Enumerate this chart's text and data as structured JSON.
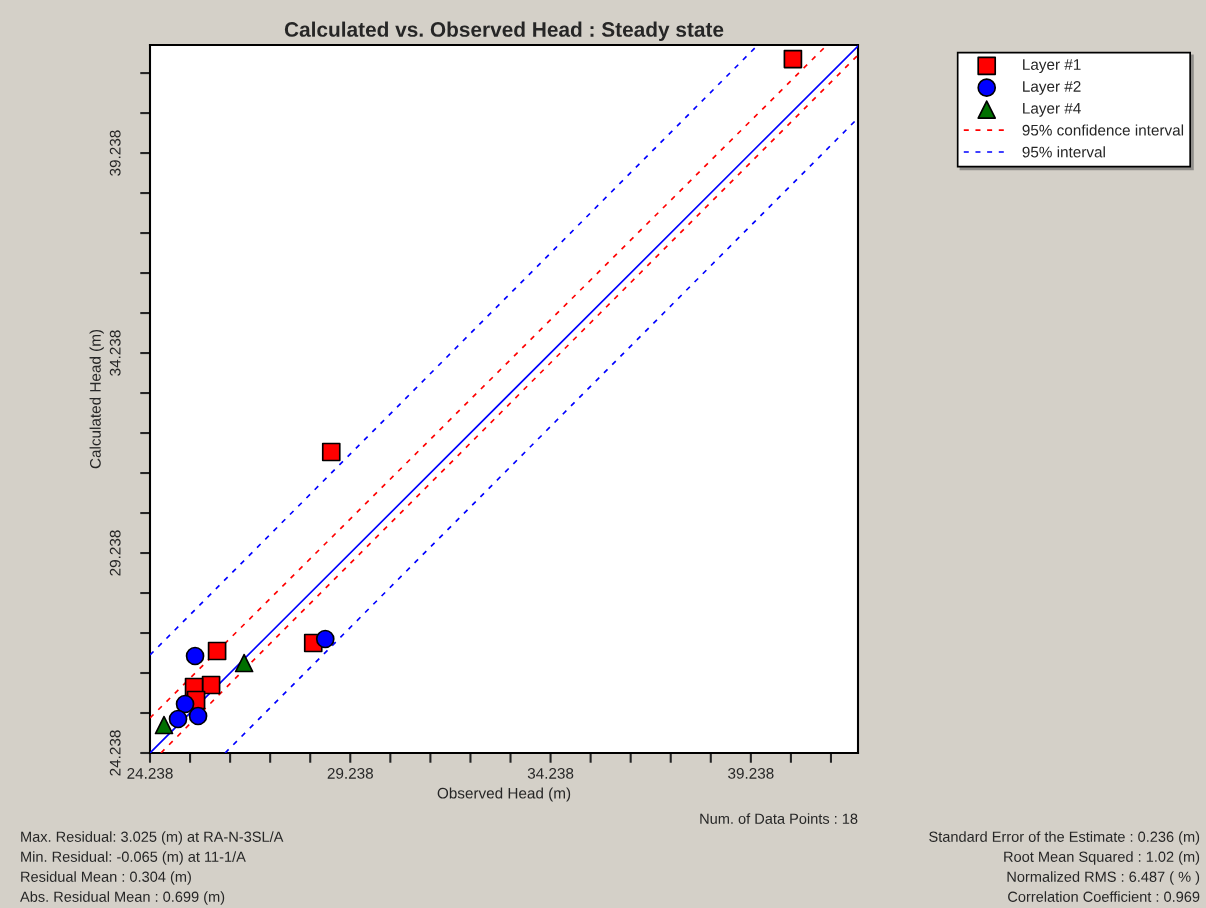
{
  "chart_data": {
    "type": "scatter",
    "title": "Calculated vs. Observed Head : Steady state",
    "xlabel": "Observed Head (m)",
    "ylabel": "Calculated Head (m)",
    "series": [
      {
        "name": "Layer #1",
        "color": "#ff0000",
        "marker": "square",
        "x": [
          40.288,
          28.763,
          25.913,
          28.313,
          25.763,
          25.338,
          25.388,
          null,
          null
        ],
        "values": [
          41.588,
          31.763,
          26.788,
          26.988,
          25.938,
          25.888,
          25.563,
          null,
          null
        ]
      },
      {
        "name": "Layer #2",
        "color": "#0000ff",
        "marker": "circle",
        "x": [
          25.363,
          28.613,
          25.113,
          24.938,
          25.438
        ],
        "values": [
          26.663,
          27.088,
          25.463,
          25.088,
          25.163
        ]
      },
      {
        "name": "Layer #4",
        "color": "#007000",
        "marker": "triangle",
        "x": [
          24.588,
          26.588
        ],
        "values": [
          24.938,
          26.488
        ]
      },
      {
        "name": "95% confidence interval",
        "type": "line",
        "line_style": "dashed",
        "color": "#ff0000",
        "x": [
          24.238,
          41.138,
          null,
          24.51,
          41.913
        ],
        "values": [
          25.113,
          41.94,
          null,
          24.238,
          41.69
        ]
      },
      {
        "name": "95% interval",
        "type": "line",
        "line_style": "dashed",
        "color": "#0000ff",
        "x": [
          24.238,
          39.413,
          null,
          26.113,
          41.913
        ],
        "values": [
          26.688,
          41.94,
          null,
          24.238,
          40.113
        ]
      },
      {
        "type": "line",
        "line_style": "solid",
        "color": "#0000ff",
        "x": [
          24.238,
          41.913
        ],
        "values": [
          24.238,
          41.913
        ]
      }
    ],
    "xlim": [
      24.238,
      41.913
    ],
    "ylim": [
      24.238,
      41.94
    ],
    "xticks": [
      24.238,
      {
        "value": 25.238,
        "label": null
      },
      {
        "value": 26.238,
        "label": null
      },
      {
        "value": 27.238,
        "label": null
      },
      {
        "value": 28.238,
        "label": null
      },
      29.238,
      {
        "value": 30.238,
        "label": null
      },
      {
        "value": 31.238,
        "label": null
      },
      {
        "value": 32.238,
        "label": null
      },
      {
        "value": 33.238,
        "label": null
      },
      34.238,
      {
        "value": 35.238,
        "label": null
      },
      {
        "value": 36.238,
        "label": null
      },
      {
        "value": 37.238,
        "label": null
      },
      {
        "value": 38.238,
        "label": null
      },
      39.238,
      {
        "value": 40.238,
        "label": null
      },
      {
        "value": 41.238,
        "label": null
      }
    ],
    "yticks": [
      24.238,
      {
        "value": 25.238,
        "label": null
      },
      {
        "value": 26.238,
        "label": null
      },
      {
        "value": 27.238,
        "label": null
      },
      {
        "value": 28.238,
        "label": null
      },
      29.238,
      {
        "value": 30.238,
        "label": null
      },
      {
        "value": 31.238,
        "label": null
      },
      {
        "value": 32.238,
        "label": null
      },
      {
        "value": 33.238,
        "label": null
      },
      34.238,
      {
        "value": 35.238,
        "label": null
      },
      {
        "value": 36.238,
        "label": null
      },
      {
        "value": 37.238,
        "label": null
      },
      {
        "value": 38.238,
        "label": null
      },
      39.238,
      {
        "value": 40.238,
        "label": null
      },
      {
        "value": 41.238,
        "label": null
      }
    ],
    "grid": false,
    "legend": "top right",
    "annotations": [
      "Num. of Data Points : 18",
      "Max. Residual: 3.025 (m) at RA-N-3SL/A",
      "Min. Residual: -0.065 (m) at 11-1/A",
      "Residual Mean : 0.304 (m)",
      "Abs. Residual Mean : 0.699 (m)",
      "Standard Error of the Estimate : 0.236 (m)",
      "Root Mean Squared : 1.02 (m)",
      "Normalized RMS : 6.487 ( % )",
      "Correlation Coefficient : 0.969"
    ]
  }
}
